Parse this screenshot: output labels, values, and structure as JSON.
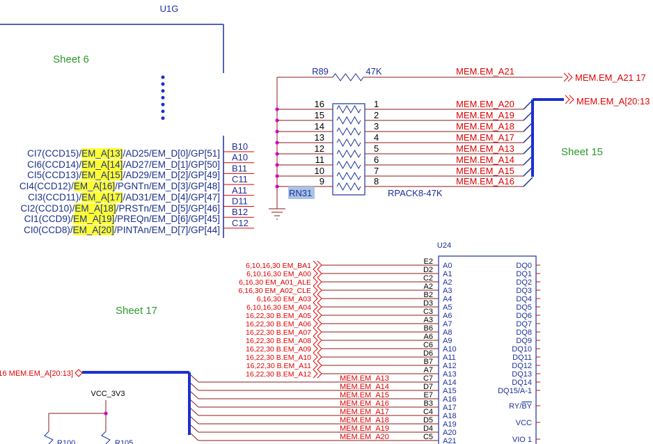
{
  "u1g": {
    "ref": "U1G",
    "pins": [
      {
        "num": "B10",
        "label": [
          "CI7(CCD15)/",
          "EM_A[13]",
          "/AD25/EM_D[0]/GP[51]"
        ]
      },
      {
        "num": "A10",
        "label": [
          "CI6(CCD14)/",
          "EM_A[14]",
          "/AD27/EM_D[1]/GP[50]"
        ]
      },
      {
        "num": "B11",
        "label": [
          "CI5(CCD13)/",
          "EM_A[15]",
          "/AD29/EM_D[2]/GP[49]"
        ]
      },
      {
        "num": "C11",
        "label": [
          "CI4(CCD12)/",
          "EM_A[16]",
          "/PGNTn/EM_D[3]/GP[48]"
        ]
      },
      {
        "num": "A11",
        "label": [
          "CI3(CCD11)/",
          "EM_A[17]",
          "/AD31/EM_D[4]/GP[47]"
        ]
      },
      {
        "num": "D11",
        "label": [
          "CI2(CCD10)/",
          "EM_A[18]",
          "/PRSTn/EM_D[5]/GP[46]"
        ]
      },
      {
        "num": "B12",
        "label": [
          "CI1(CCD9)/",
          "EM_A[19]",
          "/PREQn/EM_D[6]/GP[45]"
        ]
      },
      {
        "num": "C12",
        "label": [
          "CI0(CCD8)/",
          "EM_A[20]",
          "/PINTAn/EM_D[7]/GP[44]"
        ]
      }
    ]
  },
  "sheets": [
    "Sheet 6",
    "Sheet 15",
    "Sheet 17"
  ],
  "r89": {
    "ref": "R89",
    "value": "47K",
    "net": "MEM.EM_A21",
    "offpage": "MEM.EM_A21  17"
  },
  "rn31": {
    "ref": "RN31",
    "value": "RPACK8-47K",
    "left_pins": [
      "16",
      "15",
      "14",
      "13",
      "12",
      "11",
      "10",
      "9"
    ],
    "right_pins": [
      "1",
      "2",
      "3",
      "4",
      "5",
      "6",
      "7",
      "8"
    ],
    "nets": [
      "MEM.EM_A20",
      "MEM.EM_A19",
      "MEM.EM_A18",
      "MEM.EM_A17",
      "MEM.EM_A13",
      "MEM.EM_A14",
      "MEM.EM_A15",
      "MEM.EM_A16"
    ],
    "bus_offpage": "MEM.EM_A[20:13"
  },
  "u24": {
    "ref": "U24",
    "left_pins": [
      {
        "num": "E2",
        "name": "A0",
        "net": "6,10,16,30  EM_BA1"
      },
      {
        "num": "D2",
        "name": "A1",
        "net": "6,10,16,30  EM_A00"
      },
      {
        "num": "C2",
        "name": "A2",
        "net": "6,16,30  EM_A01_ALE"
      },
      {
        "num": "A2",
        "name": "A3",
        "net": "6,16,30  EM_A02_CLE"
      },
      {
        "num": "B2",
        "name": "A4",
        "net": "6,16,30  EM_A03"
      },
      {
        "num": "D3",
        "name": "A5",
        "net": "6,10,16,30  EM_A04"
      },
      {
        "num": "C3",
        "name": "A6",
        "net": "16,22,30  B.EM_A05"
      },
      {
        "num": "A3",
        "name": "A7",
        "net": "16,22,30  B.EM_A06"
      },
      {
        "num": "B6",
        "name": "A8",
        "net": "16,22,30  B.EM_A07"
      },
      {
        "num": "A6",
        "name": "A9",
        "net": "16,22,30  B.EM_A08"
      },
      {
        "num": "C6",
        "name": "A10",
        "net": "16,22,30  B.EM_A09"
      },
      {
        "num": "D6",
        "name": "A11",
        "net": "16,22,30  B.EM_A10"
      },
      {
        "num": "B7",
        "name": "A12",
        "net": "16,22,30  B.EM_A11"
      },
      {
        "num": "A7",
        "name": "A13",
        "net": "16,22,30  B.EM_A12"
      },
      {
        "num": "C7",
        "name": "A14",
        "net": "MEM.EM_A13"
      },
      {
        "num": "D7",
        "name": "A15",
        "net": "MEM.EM_A14"
      },
      {
        "num": "E7",
        "name": "A16",
        "net": "MEM.EM_A15"
      },
      {
        "num": "B3",
        "name": "A17",
        "net": "MEM.EM_A16"
      },
      {
        "num": "C4",
        "name": "A18",
        "net": "MEM.EM_A17"
      },
      {
        "num": "D5",
        "name": "A19",
        "net": "MEM.EM_A18"
      },
      {
        "num": "D4",
        "name": "A20",
        "net": "MEM.EM_A19"
      },
      {
        "num": "C5",
        "name": "A21",
        "net": "MEM.EM_A20"
      }
    ],
    "right_pins": [
      "DQ0",
      "DQ1",
      "DQ2",
      "DQ3",
      "DQ4",
      "DQ5",
      "DQ6",
      "DQ7",
      "DQ8",
      "DQ9",
      "DQ10",
      "DQ11",
      "DQ12",
      "DQ13",
      "DQ14",
      "DQ15/A-1"
    ],
    "ry": "RY/",
    "by": "BY",
    "vcc": "VCC",
    "vio": "VIO 1"
  },
  "bus_left": "16  MEM.EM_A[20:13]",
  "vcc_3v3": "VCC_3V3",
  "r100": "R100",
  "r105": "R105"
}
